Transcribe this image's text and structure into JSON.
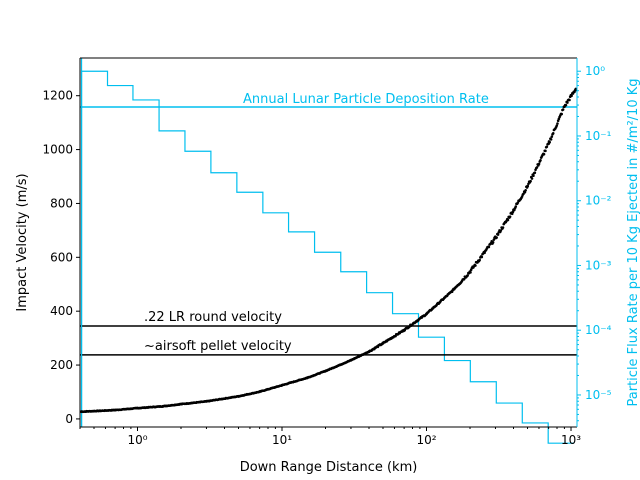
{
  "chart_data": {
    "type": "scatter",
    "xlabel": "Down Range Distance (km)",
    "ylabel": "Impact Velocity (m/s)",
    "y2label": "Particle Flux Rate per 10 Kg Ejected in #/m²/10 Kg",
    "x_scale": "log",
    "xlim": [
      0.4,
      1100
    ],
    "ylim": [
      -30,
      1340
    ],
    "y2_scale": "log",
    "y2lim": [
      3.2e-06,
      1.6
    ],
    "x_ticks": [
      1,
      10,
      100,
      1000
    ],
    "x_tick_labels": [
      "10⁰",
      "10¹",
      "10²",
      "10³"
    ],
    "y_ticks": [
      0,
      200,
      400,
      600,
      800,
      1000,
      1200
    ],
    "y2_ticks": [
      1e-05,
      0.0001,
      0.001,
      0.01,
      0.1,
      1
    ],
    "y2_tick_labels": [
      "10⁻⁵",
      "10⁻⁴",
      "10⁻³",
      "10⁻²",
      "10⁻¹",
      "10⁰"
    ],
    "series": [
      {
        "kind": "scatter",
        "color": "#000000",
        "points": [
          [
            0.41,
            27
          ],
          [
            0.5,
            29
          ],
          [
            0.7,
            33
          ],
          [
            1,
            40
          ],
          [
            1.5,
            47
          ],
          [
            2,
            55
          ],
          [
            3,
            65
          ],
          [
            5,
            84
          ],
          [
            7,
            101
          ],
          [
            10,
            125
          ],
          [
            15,
            153
          ],
          [
            20,
            178
          ],
          [
            30,
            218
          ],
          [
            40,
            250
          ],
          [
            50,
            281
          ],
          [
            70,
            330
          ],
          [
            100,
            390
          ],
          [
            150,
            474
          ],
          [
            200,
            547
          ],
          [
            300,
            672
          ],
          [
            400,
            775
          ],
          [
            500,
            864
          ],
          [
            700,
            1022
          ],
          [
            900,
            1160
          ],
          [
            1080,
            1225
          ]
        ]
      },
      {
        "kind": "step",
        "axis": "y2",
        "color": "#00bfef",
        "edges": [
          0.41,
          0.62,
          0.93,
          1.41,
          2.13,
          3.22,
          4.87,
          7.37,
          11.1,
          16.8,
          25.5,
          38.5,
          58.2,
          88,
          133,
          201,
          304,
          460,
          695,
          1050
        ],
        "values": [
          1.0,
          0.6,
          0.36,
          0.12,
          0.058,
          0.027,
          0.0135,
          0.0065,
          0.0033,
          0.0016,
          0.0008,
          0.00038,
          0.00018,
          7.8e-05,
          3.4e-05,
          1.6e-05,
          7.5e-06,
          3.7e-06,
          1.8e-06
        ]
      }
    ],
    "reference_lines": [
      {
        "axis": "y",
        "value": 345,
        "color": "#000000",
        "label": ".22 LR round velocity"
      },
      {
        "axis": "y",
        "value": 238,
        "color": "#000000",
        "label": "~airsoft pellet velocity"
      },
      {
        "axis": "y2",
        "value": 0.28,
        "color": "#00bfef",
        "label": "Annual Lunar Particle Deposition Rate"
      },
      {
        "axis": "x",
        "value": 0.41,
        "color": "#00bfef"
      }
    ]
  },
  "colors": {
    "accent": "#00bfef",
    "primary": "#000000"
  }
}
